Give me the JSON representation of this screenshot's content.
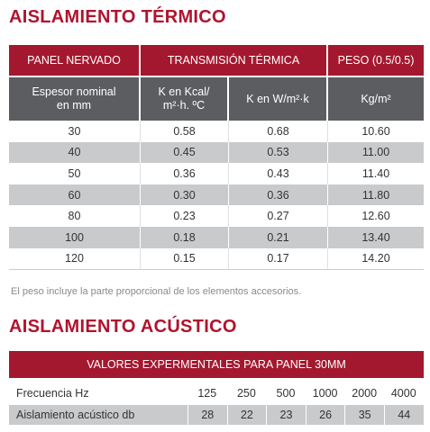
{
  "thermal": {
    "title": "AISLAMIENTO TÉRMICO",
    "headers": {
      "panel": "PANEL NERVADO",
      "transmission": "TRANSMISIÓN TÉRMICA",
      "weight": "PESO  (0.5/0.5)"
    },
    "subheaders": {
      "thickness_line1": "Espesor nominal",
      "thickness_line2": "en mm",
      "k_kcal_line1": "K en Kcal/",
      "k_kcal_line2": "m²·h. ºC",
      "k_w": "K en W/m²·k",
      "kg": "Kg/m²"
    },
    "rows": [
      {
        "thickness": "30",
        "k_kcal": "0.58",
        "k_w": "0.68",
        "weight": "10.60"
      },
      {
        "thickness": "40",
        "k_kcal": "0.45",
        "k_w": "0.53",
        "weight": "11.00"
      },
      {
        "thickness": "50",
        "k_kcal": "0.36",
        "k_w": "0.43",
        "weight": "11.40"
      },
      {
        "thickness": "60",
        "k_kcal": "0.30",
        "k_w": "0.36",
        "weight": "11.80"
      },
      {
        "thickness": "80",
        "k_kcal": "0.23",
        "k_w": "0.27",
        "weight": "12.60"
      },
      {
        "thickness": "100",
        "k_kcal": "0.18",
        "k_w": "0.21",
        "weight": "13.40"
      },
      {
        "thickness": "120",
        "k_kcal": "0.15",
        "k_w": "0.17",
        "weight": "14.20"
      }
    ],
    "note": "El peso incluye la parte proporcional de los elementos accesorios."
  },
  "acoustic": {
    "title": "AISLAMIENTO ACÚSTICO",
    "header": "VALORES EXPERMENTALES PARA PANEL 30mm",
    "frequency_label": "Frecuencia Hz",
    "frequencies": [
      "125",
      "250",
      "500",
      "1000",
      "2000",
      "4000"
    ],
    "insulation_label": "Aislamiento acústico db",
    "insulation": [
      "28",
      "22",
      "23",
      "26",
      "35",
      "44"
    ]
  },
  "colors": {
    "accent": "#a4182f",
    "title": "#b0132e",
    "subheader": "#5b5d60",
    "shade": "#c9cacc"
  }
}
